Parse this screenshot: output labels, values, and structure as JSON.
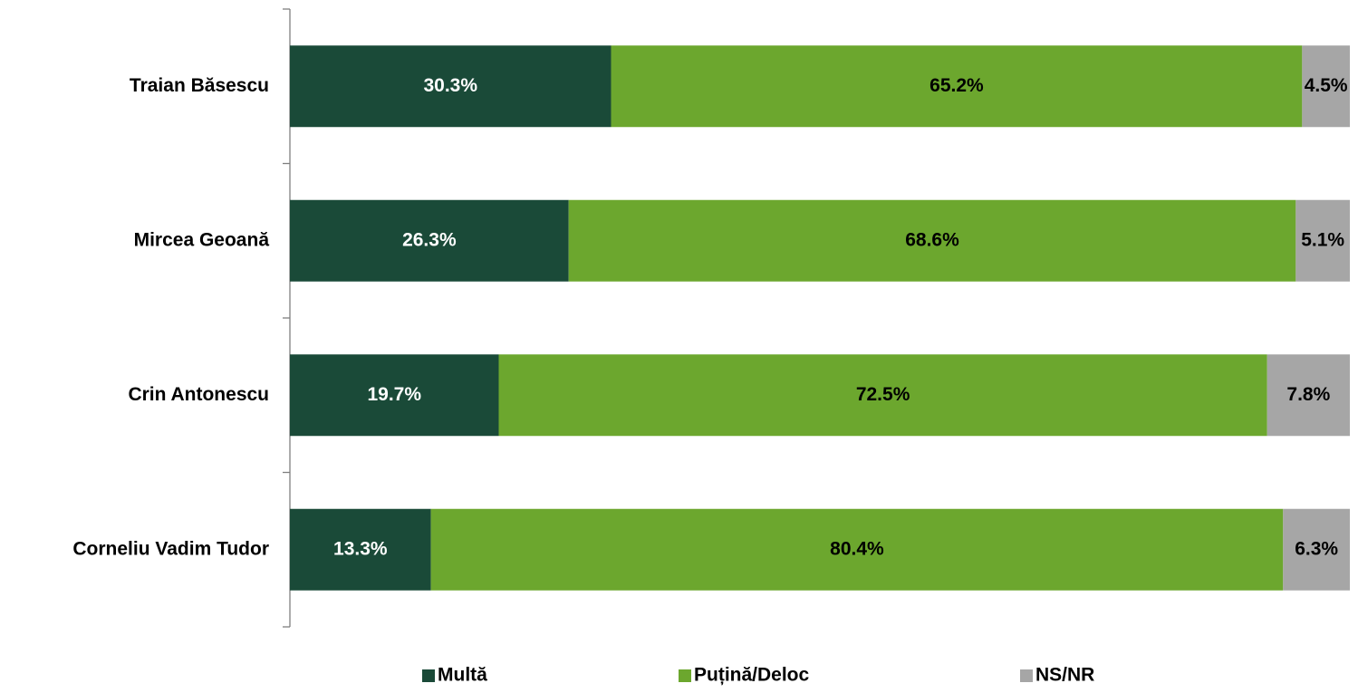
{
  "chart_data": {
    "type": "stacked-barh",
    "categories": [
      "Traian Băsescu",
      "Mircea Geoană",
      "Crin Antonescu",
      "Corneliu Vadim Tudor"
    ],
    "series": [
      {
        "name": "Multă",
        "color": "#1a4a38",
        "label_color": "#ffffff",
        "values": [
          30.3,
          26.3,
          19.7,
          13.3
        ],
        "value_labels": [
          "30.3%",
          "26.3%",
          "19.7%",
          "13.3%"
        ]
      },
      {
        "name": "Puțină/Deloc",
        "color": "#6ca72e",
        "label_color": "#000000",
        "values": [
          65.2,
          68.6,
          72.5,
          80.4
        ],
        "value_labels": [
          "65.2%",
          "68.6%",
          "72.5%",
          "80.4%"
        ]
      },
      {
        "name": "NS/NR",
        "color": "#a6a6a6",
        "label_color": "#000000",
        "values": [
          4.5,
          5.1,
          7.8,
          6.3
        ],
        "value_labels": [
          "4.5%",
          "5.1%",
          "7.8%",
          "6.3%"
        ]
      }
    ],
    "legend": "bottom"
  }
}
